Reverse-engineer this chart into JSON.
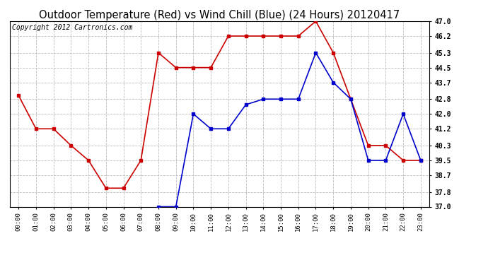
{
  "title": "Outdoor Temperature (Red) vs Wind Chill (Blue) (24 Hours) 20120417",
  "copyright_text": "Copyright 2012 Cartronics.com",
  "hours": [
    "00:00",
    "01:00",
    "02:00",
    "03:00",
    "04:00",
    "05:00",
    "06:00",
    "07:00",
    "08:00",
    "09:00",
    "10:00",
    "11:00",
    "12:00",
    "13:00",
    "14:00",
    "15:00",
    "16:00",
    "17:00",
    "18:00",
    "19:00",
    "20:00",
    "21:00",
    "22:00",
    "23:00"
  ],
  "red_data": [
    43.0,
    41.2,
    41.2,
    40.3,
    39.5,
    38.0,
    38.0,
    39.5,
    45.3,
    44.5,
    44.5,
    44.5,
    46.2,
    46.2,
    46.2,
    46.2,
    46.2,
    47.0,
    45.3,
    42.8,
    40.3,
    40.3,
    39.5,
    39.5
  ],
  "blue_data": [
    null,
    null,
    null,
    null,
    null,
    null,
    null,
    null,
    37.0,
    37.0,
    42.0,
    41.2,
    41.2,
    42.5,
    42.8,
    42.8,
    42.8,
    45.3,
    43.7,
    42.8,
    39.5,
    39.5,
    42.0,
    39.5
  ],
  "ylim": [
    37.0,
    47.0
  ],
  "yticks": [
    37.0,
    37.8,
    38.7,
    39.5,
    40.3,
    41.2,
    42.0,
    42.8,
    43.7,
    44.5,
    45.3,
    46.2,
    47.0
  ],
  "red_color": "#cc0000",
  "blue_color": "#0000cc",
  "bg_color": "#ffffff",
  "grid_color": "#bbbbbb",
  "title_fontsize": 10.5,
  "copyright_fontsize": 7,
  "marker": "s",
  "marker_size": 3,
  "line_width": 1.2,
  "fig_width": 6.9,
  "fig_height": 3.75,
  "dpi": 100
}
